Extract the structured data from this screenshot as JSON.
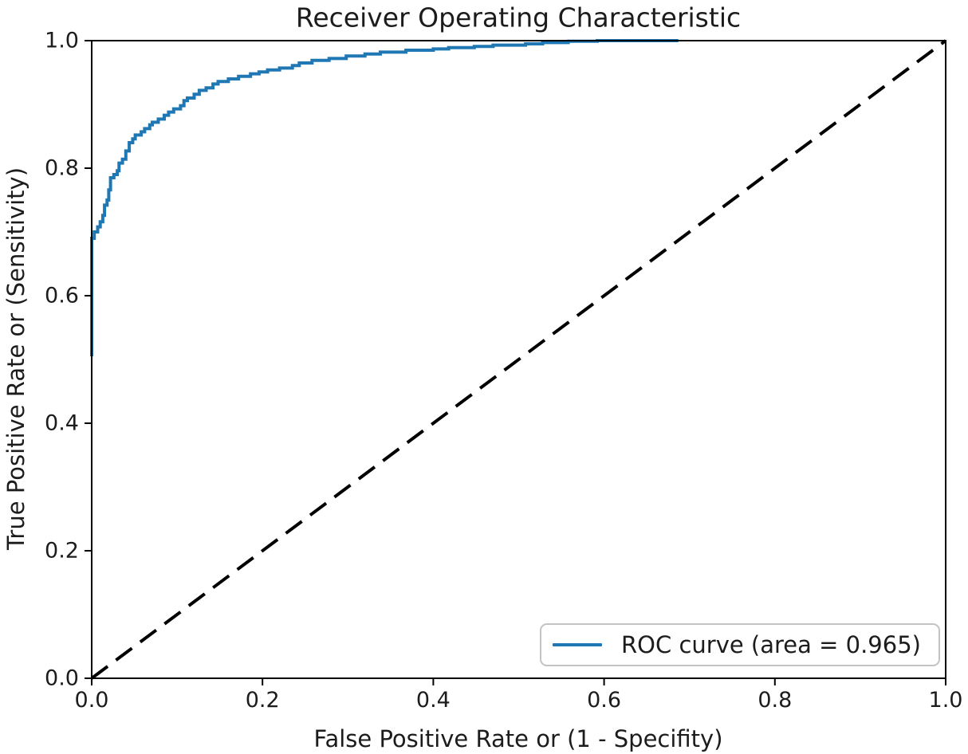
{
  "chart_data": {
    "type": "line",
    "title": "Receiver Operating Characteristic",
    "xlabel": "False Positive Rate or (1 - Specifity)",
    "ylabel": "True Positive Rate or (Sensitivity)",
    "xlim": [
      0.0,
      1.0
    ],
    "ylim": [
      0.0,
      1.0
    ],
    "grid": false,
    "xticks": {
      "values": [
        0.0,
        0.2,
        0.4,
        0.6,
        0.8,
        1.0
      ],
      "labels": [
        "0.0",
        "0.2",
        "0.4",
        "0.6",
        "0.8",
        "1.0"
      ]
    },
    "yticks": {
      "values": [
        0.0,
        0.2,
        0.4,
        0.6,
        0.8,
        1.0
      ],
      "labels": [
        "0.0",
        "0.2",
        "0.4",
        "0.6",
        "0.8",
        "1.0"
      ]
    },
    "auc": 0.965,
    "legend": {
      "position": "lower right",
      "label": "ROC curve (area = 0.965)",
      "color": "#1f77b4"
    },
    "colors": {
      "roc_curve": "#1f77b4",
      "diagonal": "#000000",
      "axes": "#000000",
      "text": "#1c1c1c"
    },
    "series": [
      {
        "name": "roc-curve",
        "style": "solid",
        "color": "#1f77b4",
        "linewidth": 4,
        "points": [
          [
            0.0,
            0.505
          ],
          [
            0.0,
            0.69
          ],
          [
            0.003,
            0.69
          ],
          [
            0.003,
            0.7
          ],
          [
            0.007,
            0.7
          ],
          [
            0.007,
            0.708
          ],
          [
            0.01,
            0.708
          ],
          [
            0.01,
            0.716
          ],
          [
            0.013,
            0.716
          ],
          [
            0.013,
            0.726
          ],
          [
            0.015,
            0.726
          ],
          [
            0.015,
            0.742
          ],
          [
            0.018,
            0.742
          ],
          [
            0.018,
            0.75
          ],
          [
            0.02,
            0.75
          ],
          [
            0.02,
            0.766
          ],
          [
            0.022,
            0.766
          ],
          [
            0.022,
            0.785
          ],
          [
            0.026,
            0.785
          ],
          [
            0.026,
            0.79
          ],
          [
            0.03,
            0.79
          ],
          [
            0.03,
            0.796
          ],
          [
            0.032,
            0.796
          ],
          [
            0.032,
            0.808
          ],
          [
            0.036,
            0.808
          ],
          [
            0.036,
            0.814
          ],
          [
            0.04,
            0.814
          ],
          [
            0.04,
            0.827
          ],
          [
            0.044,
            0.827
          ],
          [
            0.044,
            0.84
          ],
          [
            0.048,
            0.84
          ],
          [
            0.048,
            0.846
          ],
          [
            0.051,
            0.846
          ],
          [
            0.051,
            0.852
          ],
          [
            0.058,
            0.852
          ],
          [
            0.058,
            0.857
          ],
          [
            0.062,
            0.857
          ],
          [
            0.062,
            0.862
          ],
          [
            0.068,
            0.862
          ],
          [
            0.068,
            0.868
          ],
          [
            0.071,
            0.868
          ],
          [
            0.071,
            0.872
          ],
          [
            0.078,
            0.872
          ],
          [
            0.078,
            0.877
          ],
          [
            0.085,
            0.877
          ],
          [
            0.085,
            0.883
          ],
          [
            0.09,
            0.883
          ],
          [
            0.09,
            0.888
          ],
          [
            0.096,
            0.888
          ],
          [
            0.096,
            0.893
          ],
          [
            0.104,
            0.893
          ],
          [
            0.104,
            0.898
          ],
          [
            0.108,
            0.898
          ],
          [
            0.108,
            0.906
          ],
          [
            0.112,
            0.906
          ],
          [
            0.112,
            0.91
          ],
          [
            0.12,
            0.91
          ],
          [
            0.12,
            0.916
          ],
          [
            0.126,
            0.916
          ],
          [
            0.126,
            0.922
          ],
          [
            0.134,
            0.922
          ],
          [
            0.134,
            0.926
          ],
          [
            0.142,
            0.926
          ],
          [
            0.142,
            0.932
          ],
          [
            0.148,
            0.932
          ],
          [
            0.148,
            0.936
          ],
          [
            0.16,
            0.936
          ],
          [
            0.16,
            0.94
          ],
          [
            0.172,
            0.94
          ],
          [
            0.172,
            0.944
          ],
          [
            0.186,
            0.944
          ],
          [
            0.186,
            0.948
          ],
          [
            0.196,
            0.948
          ],
          [
            0.196,
            0.951
          ],
          [
            0.206,
            0.951
          ],
          [
            0.206,
            0.954
          ],
          [
            0.22,
            0.954
          ],
          [
            0.22,
            0.957
          ],
          [
            0.235,
            0.957
          ],
          [
            0.235,
            0.961
          ],
          [
            0.243,
            0.961
          ],
          [
            0.243,
            0.965
          ],
          [
            0.258,
            0.965
          ],
          [
            0.258,
            0.969
          ],
          [
            0.278,
            0.969
          ],
          [
            0.278,
            0.972
          ],
          [
            0.298,
            0.972
          ],
          [
            0.298,
            0.976
          ],
          [
            0.32,
            0.976
          ],
          [
            0.32,
            0.979
          ],
          [
            0.338,
            0.979
          ],
          [
            0.338,
            0.982
          ],
          [
            0.368,
            0.982
          ],
          [
            0.368,
            0.985
          ],
          [
            0.4,
            0.985
          ],
          [
            0.4,
            0.987
          ],
          [
            0.418,
            0.987
          ],
          [
            0.418,
            0.989
          ],
          [
            0.448,
            0.989
          ],
          [
            0.448,
            0.991
          ],
          [
            0.47,
            0.991
          ],
          [
            0.47,
            0.993
          ],
          [
            0.508,
            0.993
          ],
          [
            0.508,
            0.995
          ],
          [
            0.528,
            0.995
          ],
          [
            0.528,
            0.997
          ],
          [
            0.558,
            0.997
          ],
          [
            0.558,
            0.999
          ],
          [
            0.592,
            0.999
          ],
          [
            0.592,
            1.0
          ],
          [
            0.687,
            1.0
          ]
        ]
      },
      {
        "name": "chance-diagonal",
        "style": "dashed",
        "color": "#000000",
        "linewidth": 4,
        "dash": [
          25,
          13
        ],
        "points": [
          [
            0.0,
            0.0
          ],
          [
            1.0,
            1.0
          ]
        ]
      }
    ]
  }
}
